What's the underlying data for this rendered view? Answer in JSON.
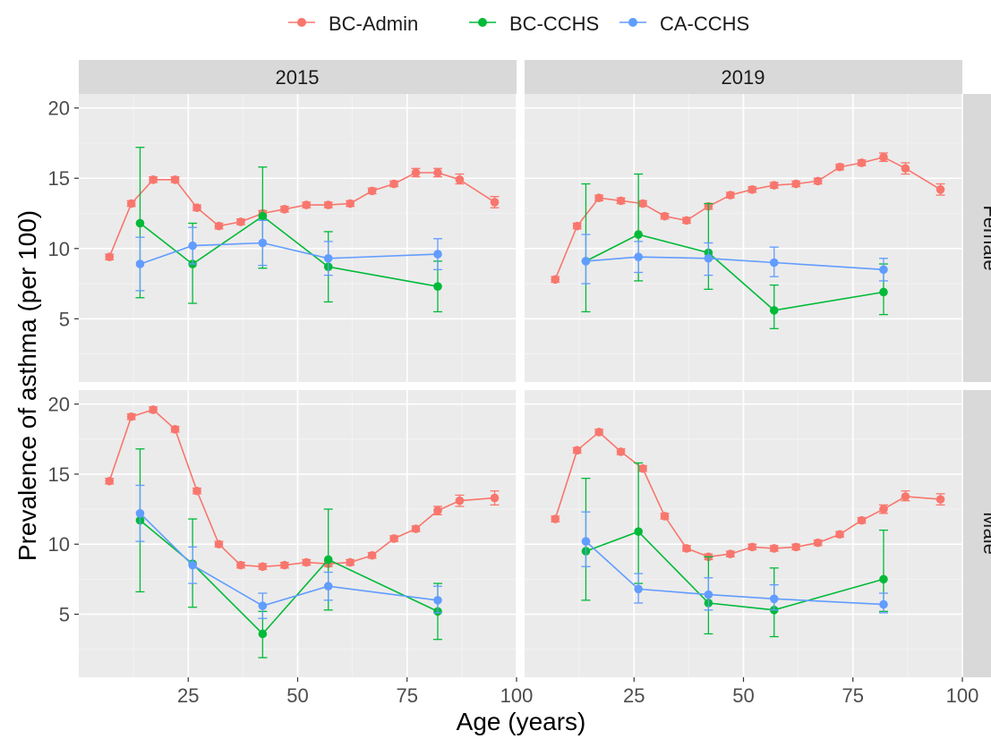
{
  "legend": [
    {
      "name": "BC-Admin",
      "color": "#F8766D"
    },
    {
      "name": "BC-CCHS",
      "color": "#00BA38"
    },
    {
      "name": "CA-CCHS",
      "color": "#619CFF"
    }
  ],
  "chart_data": {
    "type": "line",
    "xlabel": "Age (years)",
    "ylabel": "Prevalence of asthma (per 100)",
    "xlim": [
      0,
      100
    ],
    "ylim": [
      0.5,
      21
    ],
    "xticks": [
      "25",
      "50",
      "75",
      "100"
    ],
    "yticks": [
      "5",
      "10",
      "15",
      "20"
    ],
    "col_facets": [
      "2015",
      "2019"
    ],
    "row_facets": [
      "Female",
      "Male"
    ],
    "legend_position": "top",
    "grid": true,
    "panels": [
      {
        "year": "2015",
        "sex": "Female",
        "series": [
          {
            "name": "BC-Admin",
            "x": [
              7,
              12,
              17,
              22,
              27,
              32,
              37,
              42,
              47,
              52,
              57,
              62,
              67,
              72,
              77,
              82,
              87,
              95
            ],
            "y": [
              9.4,
              13.2,
              14.9,
              14.9,
              12.9,
              11.6,
              11.9,
              12.5,
              12.8,
              13.1,
              13.1,
              13.2,
              14.1,
              14.6,
              15.4,
              15.4,
              14.9,
              13.3
            ],
            "lo": [
              9.2,
              13.0,
              14.7,
              14.7,
              12.7,
              11.4,
              11.7,
              12.3,
              12.6,
              12.9,
              12.9,
              13.0,
              13.9,
              14.4,
              15.1,
              15.1,
              14.6,
              12.9
            ],
            "hi": [
              9.6,
              13.4,
              15.1,
              15.1,
              13.1,
              11.8,
              12.1,
              12.7,
              13.0,
              13.3,
              13.3,
              13.4,
              14.3,
              14.8,
              15.7,
              15.7,
              15.3,
              13.7
            ]
          },
          {
            "name": "BC-CCHS",
            "x": [
              14,
              26,
              42,
              57,
              82
            ],
            "y": [
              11.8,
              8.9,
              12.3,
              8.7,
              7.3
            ],
            "lo": [
              6.5,
              6.1,
              8.6,
              6.2,
              5.5
            ],
            "hi": [
              17.2,
              11.8,
              15.8,
              11.2,
              9.1
            ]
          },
          {
            "name": "CA-CCHS",
            "x": [
              14,
              26,
              42,
              57,
              82
            ],
            "y": [
              8.9,
              10.2,
              10.4,
              9.3,
              9.6
            ],
            "lo": [
              7.0,
              8.9,
              8.8,
              8.1,
              8.5
            ],
            "hi": [
              10.8,
              11.5,
              12.0,
              10.5,
              10.7
            ]
          }
        ]
      },
      {
        "year": "2019",
        "sex": "Female",
        "series": [
          {
            "name": "BC-Admin",
            "x": [
              7,
              12,
              17,
              22,
              27,
              32,
              37,
              42,
              47,
              52,
              57,
              62,
              67,
              72,
              77,
              82,
              87,
              95
            ],
            "y": [
              7.8,
              11.6,
              13.6,
              13.4,
              13.2,
              12.3,
              12.0,
              13.0,
              13.8,
              14.2,
              14.5,
              14.6,
              14.8,
              15.8,
              16.1,
              16.5,
              15.7,
              14.2
            ],
            "lo": [
              7.6,
              11.4,
              13.4,
              13.2,
              13.0,
              12.1,
              11.8,
              12.8,
              13.6,
              14.0,
              14.3,
              14.4,
              14.6,
              15.6,
              15.9,
              16.2,
              15.3,
              13.8
            ],
            "hi": [
              8.0,
              11.8,
              13.8,
              13.6,
              13.4,
              12.5,
              12.2,
              13.2,
              14.0,
              14.4,
              14.7,
              14.8,
              15.0,
              16.0,
              16.3,
              16.8,
              16.1,
              14.6
            ]
          },
          {
            "name": "BC-CCHS",
            "x": [
              14,
              26,
              42,
              57,
              82
            ],
            "y": [
              9.1,
              11.0,
              9.7,
              5.6,
              6.9
            ],
            "lo": [
              5.5,
              7.7,
              7.1,
              4.3,
              5.3
            ],
            "hi": [
              14.6,
              15.3,
              13.2,
              7.4,
              8.9
            ]
          },
          {
            "name": "CA-CCHS",
            "x": [
              14,
              26,
              42,
              57,
              82
            ],
            "y": [
              9.1,
              9.4,
              9.3,
              9.0,
              8.5
            ],
            "lo": [
              7.5,
              8.3,
              8.1,
              8.0,
              7.7
            ],
            "hi": [
              11.0,
              10.5,
              10.4,
              10.1,
              9.3
            ]
          }
        ]
      },
      {
        "year": "2015",
        "sex": "Male",
        "series": [
          {
            "name": "BC-Admin",
            "x": [
              7,
              12,
              17,
              22,
              27,
              32,
              37,
              42,
              47,
              52,
              57,
              62,
              67,
              72,
              77,
              82,
              87,
              95
            ],
            "y": [
              14.5,
              19.1,
              19.6,
              18.2,
              13.8,
              10.0,
              8.5,
              8.4,
              8.5,
              8.7,
              8.6,
              8.7,
              9.2,
              10.4,
              11.1,
              12.4,
              13.1,
              13.3
            ],
            "lo": [
              14.3,
              18.9,
              19.4,
              18.0,
              13.6,
              9.8,
              8.3,
              8.2,
              8.3,
              8.5,
              8.4,
              8.5,
              9.0,
              10.2,
              10.9,
              12.1,
              12.7,
              12.8
            ],
            "hi": [
              14.7,
              19.3,
              19.8,
              18.4,
              14.0,
              10.2,
              8.7,
              8.6,
              8.7,
              8.9,
              8.8,
              8.9,
              9.4,
              10.6,
              11.3,
              12.7,
              13.5,
              13.8
            ]
          },
          {
            "name": "BC-CCHS",
            "x": [
              14,
              26,
              42,
              57,
              82
            ],
            "y": [
              11.7,
              8.6,
              3.6,
              8.9,
              5.2
            ],
            "lo": [
              6.6,
              5.5,
              1.9,
              5.3,
              3.2
            ],
            "hi": [
              16.8,
              11.8,
              5.2,
              12.5,
              7.2
            ]
          },
          {
            "name": "CA-CCHS",
            "x": [
              14,
              26,
              42,
              57,
              82
            ],
            "y": [
              12.2,
              8.5,
              5.6,
              7.0,
              6.0
            ],
            "lo": [
              10.2,
              7.2,
              4.7,
              6.0,
              5.1
            ],
            "hi": [
              14.2,
              9.8,
              6.5,
              8.0,
              7.0
            ]
          }
        ]
      },
      {
        "year": "2019",
        "sex": "Male",
        "series": [
          {
            "name": "BC-Admin",
            "x": [
              7,
              12,
              17,
              22,
              27,
              32,
              37,
              42,
              47,
              52,
              57,
              62,
              67,
              72,
              77,
              82,
              87,
              95
            ],
            "y": [
              11.8,
              16.7,
              18.0,
              16.6,
              15.4,
              12.0,
              9.7,
              9.1,
              9.3,
              9.8,
              9.7,
              9.8,
              10.1,
              10.7,
              11.7,
              12.5,
              13.4,
              13.2
            ],
            "lo": [
              11.6,
              16.5,
              17.8,
              16.4,
              15.2,
              11.8,
              9.5,
              8.9,
              9.1,
              9.6,
              9.5,
              9.6,
              9.9,
              10.5,
              11.5,
              12.2,
              13.1,
              12.8
            ],
            "hi": [
              12.0,
              16.9,
              18.2,
              16.8,
              15.6,
              12.2,
              9.9,
              9.3,
              9.5,
              10.0,
              9.9,
              10.0,
              10.3,
              10.9,
              11.9,
              12.8,
              13.8,
              13.6
            ]
          },
          {
            "name": "BC-CCHS",
            "x": [
              14,
              26,
              42,
              57,
              82
            ],
            "y": [
              9.5,
              10.9,
              5.8,
              5.3,
              7.5
            ],
            "lo": [
              6.0,
              7.2,
              3.6,
              3.4,
              5.2
            ],
            "hi": [
              14.7,
              15.8,
              9.1,
              8.3,
              11.0
            ]
          },
          {
            "name": "CA-CCHS",
            "x": [
              14,
              26,
              42,
              57,
              82
            ],
            "y": [
              10.2,
              6.8,
              6.4,
              6.1,
              5.7
            ],
            "lo": [
              8.4,
              5.8,
              5.3,
              5.3,
              5.1
            ],
            "hi": [
              12.3,
              7.9,
              7.6,
              7.1,
              6.5
            ]
          }
        ]
      }
    ]
  }
}
